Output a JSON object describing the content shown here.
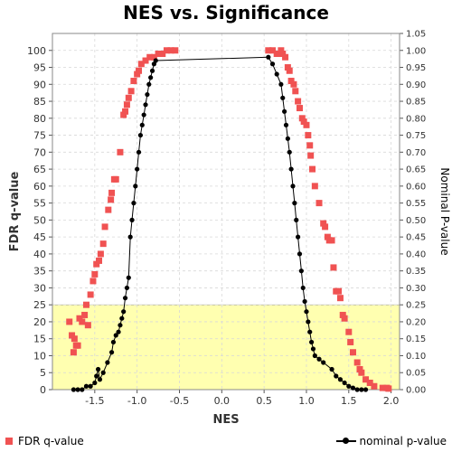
{
  "chart_data": {
    "type": "scatter",
    "title": "NES vs. Significance",
    "xlabel": "NES",
    "ylabel": "FDR q-value",
    "y2label": "Nominal P-value",
    "xlim": [
      -2.0,
      2.1
    ],
    "ylim": [
      0,
      105
    ],
    "y2lim": [
      0,
      1.05
    ],
    "xticks": [
      "-1.5",
      "-1.0",
      "-0.5",
      "0.0",
      "0.5",
      "1.0",
      "1.5",
      "2.0"
    ],
    "yticks": [
      "0",
      "5",
      "10",
      "15",
      "20",
      "25",
      "30",
      "35",
      "40",
      "45",
      "50",
      "55",
      "60",
      "65",
      "70",
      "75",
      "80",
      "85",
      "90",
      "95",
      "100"
    ],
    "y2ticks": [
      "0.00",
      "0.05",
      "0.10",
      "0.15",
      "0.20",
      "0.25",
      "0.30",
      "0.35",
      "0.40",
      "0.45",
      "0.50",
      "0.55",
      "0.60",
      "0.65",
      "0.70",
      "0.75",
      "0.80",
      "0.85",
      "0.90",
      "0.95",
      "1.00",
      "1.05"
    ],
    "grid": true,
    "highlight_band": {
      "y_from": 0,
      "y_to": 25,
      "color": "#ffffb0"
    },
    "colors": {
      "fdr": "#f05252",
      "pval": "#000000",
      "band": "#ffffb0",
      "grid": "#d8d8d8"
    },
    "series": [
      {
        "name": "FDR q-value",
        "axis": "left",
        "marker": "square",
        "points": [
          [
            -1.8,
            20
          ],
          [
            -1.77,
            16
          ],
          [
            -1.74,
            15
          ],
          [
            -1.75,
            11
          ],
          [
            -1.72,
            13
          ],
          [
            -1.7,
            13
          ],
          [
            -1.68,
            21
          ],
          [
            -1.65,
            20
          ],
          [
            -1.62,
            22
          ],
          [
            -1.6,
            25
          ],
          [
            -1.58,
            19
          ],
          [
            -1.55,
            28
          ],
          [
            -1.52,
            32
          ],
          [
            -1.5,
            34
          ],
          [
            -1.48,
            37
          ],
          [
            -1.45,
            38
          ],
          [
            -1.43,
            40
          ],
          [
            -1.4,
            43
          ],
          [
            -1.38,
            48
          ],
          [
            -1.34,
            53
          ],
          [
            -1.31,
            56
          ],
          [
            -1.3,
            58
          ],
          [
            -1.27,
            62
          ],
          [
            -1.25,
            62
          ],
          [
            -1.2,
            70
          ],
          [
            -1.16,
            81
          ],
          [
            -1.14,
            82
          ],
          [
            -1.12,
            84
          ],
          [
            -1.1,
            86
          ],
          [
            -1.07,
            88
          ],
          [
            -1.04,
            91
          ],
          [
            -1.0,
            93
          ],
          [
            -0.98,
            94
          ],
          [
            -0.95,
            96
          ],
          [
            -0.9,
            97
          ],
          [
            -0.85,
            98
          ],
          [
            -0.8,
            98
          ],
          [
            -0.75,
            99
          ],
          [
            -0.7,
            99
          ],
          [
            -0.65,
            100
          ],
          [
            -0.6,
            100
          ],
          [
            -0.55,
            100
          ],
          [
            0.55,
            100
          ],
          [
            0.6,
            100
          ],
          [
            0.65,
            99
          ],
          [
            0.7,
            100
          ],
          [
            0.72,
            99
          ],
          [
            0.75,
            98
          ],
          [
            0.78,
            95
          ],
          [
            0.8,
            94
          ],
          [
            0.82,
            91
          ],
          [
            0.85,
            90
          ],
          [
            0.87,
            88
          ],
          [
            0.9,
            85
          ],
          [
            0.92,
            83
          ],
          [
            0.95,
            80
          ],
          [
            0.97,
            79
          ],
          [
            1.0,
            78
          ],
          [
            1.02,
            75
          ],
          [
            1.04,
            72
          ],
          [
            1.05,
            69
          ],
          [
            1.07,
            65
          ],
          [
            1.1,
            60
          ],
          [
            1.15,
            55
          ],
          [
            1.2,
            49
          ],
          [
            1.22,
            48
          ],
          [
            1.25,
            45
          ],
          [
            1.27,
            44
          ],
          [
            1.3,
            44
          ],
          [
            1.32,
            36
          ],
          [
            1.35,
            29
          ],
          [
            1.38,
            29
          ],
          [
            1.4,
            27
          ],
          [
            1.43,
            22
          ],
          [
            1.45,
            21
          ],
          [
            1.5,
            17
          ],
          [
            1.52,
            14
          ],
          [
            1.55,
            11
          ],
          [
            1.6,
            8
          ],
          [
            1.63,
            6
          ],
          [
            1.65,
            5
          ],
          [
            1.7,
            3
          ],
          [
            1.75,
            2
          ],
          [
            1.8,
            1
          ],
          [
            1.9,
            0.5
          ],
          [
            1.95,
            0.5
          ],
          [
            1.97,
            0.3
          ]
        ]
      },
      {
        "name": "nominal p-value",
        "axis": "right",
        "marker": "circle-line",
        "points": [
          [
            -1.75,
            0.0
          ],
          [
            -1.7,
            0.0
          ],
          [
            -1.65,
            0.0
          ],
          [
            -1.6,
            0.01
          ],
          [
            -1.55,
            0.01
          ],
          [
            -1.5,
            0.02
          ],
          [
            -1.48,
            0.04
          ],
          [
            -1.46,
            0.06
          ],
          [
            -1.44,
            0.03
          ],
          [
            -1.4,
            0.05
          ],
          [
            -1.35,
            0.08
          ],
          [
            -1.3,
            0.11
          ],
          [
            -1.28,
            0.14
          ],
          [
            -1.25,
            0.16
          ],
          [
            -1.22,
            0.17
          ],
          [
            -1.2,
            0.19
          ],
          [
            -1.18,
            0.21
          ],
          [
            -1.16,
            0.23
          ],
          [
            -1.14,
            0.27
          ],
          [
            -1.12,
            0.3
          ],
          [
            -1.1,
            0.33
          ],
          [
            -1.08,
            0.45
          ],
          [
            -1.06,
            0.5
          ],
          [
            -1.04,
            0.55
          ],
          [
            -1.02,
            0.6
          ],
          [
            -1.0,
            0.65
          ],
          [
            -0.98,
            0.7
          ],
          [
            -0.96,
            0.75
          ],
          [
            -0.94,
            0.78
          ],
          [
            -0.92,
            0.81
          ],
          [
            -0.9,
            0.84
          ],
          [
            -0.88,
            0.87
          ],
          [
            -0.86,
            0.9
          ],
          [
            -0.84,
            0.92
          ],
          [
            -0.82,
            0.94
          ],
          [
            -0.8,
            0.96
          ],
          [
            -0.78,
            0.97
          ],
          [
            0.55,
            0.98
          ],
          [
            0.6,
            0.96
          ],
          [
            0.65,
            0.93
          ],
          [
            0.7,
            0.9
          ],
          [
            0.72,
            0.86
          ],
          [
            0.74,
            0.82
          ],
          [
            0.76,
            0.78
          ],
          [
            0.78,
            0.74
          ],
          [
            0.8,
            0.7
          ],
          [
            0.82,
            0.65
          ],
          [
            0.84,
            0.6
          ],
          [
            0.86,
            0.55
          ],
          [
            0.88,
            0.5
          ],
          [
            0.9,
            0.45
          ],
          [
            0.92,
            0.4
          ],
          [
            0.94,
            0.35
          ],
          [
            0.96,
            0.3
          ],
          [
            0.98,
            0.26
          ],
          [
            1.0,
            0.23
          ],
          [
            1.02,
            0.2
          ],
          [
            1.04,
            0.17
          ],
          [
            1.06,
            0.14
          ],
          [
            1.08,
            0.12
          ],
          [
            1.1,
            0.1
          ],
          [
            1.15,
            0.09
          ],
          [
            1.2,
            0.08
          ],
          [
            1.3,
            0.06
          ],
          [
            1.35,
            0.04
          ],
          [
            1.4,
            0.03
          ],
          [
            1.45,
            0.02
          ],
          [
            1.5,
            0.01
          ],
          [
            1.55,
            0.005
          ],
          [
            1.6,
            0.0
          ],
          [
            1.65,
            0.0
          ],
          [
            1.7,
            0.0
          ]
        ]
      }
    ],
    "legend": [
      "FDR q-value",
      "nominal p-value"
    ],
    "legend_placement": "bottom"
  }
}
